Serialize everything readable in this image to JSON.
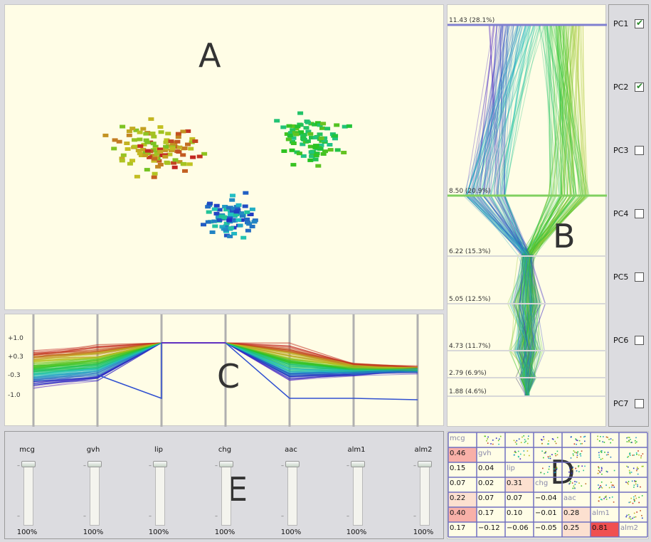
{
  "panel_labels": {
    "scatter": "A",
    "pca": "B",
    "pcp": "C",
    "matrix": "D",
    "sliders": "E"
  },
  "pca_axes": [
    {
      "label": "11.43 (28.1%)",
      "value": 11.43,
      "highlight": true
    },
    {
      "label": "8.50 (20.9%)",
      "value": 8.5,
      "highlight": true
    },
    {
      "label": "6.22 (15.3%)",
      "value": 6.22,
      "highlight": false
    },
    {
      "label": "5.05 (12.5%)",
      "value": 5.05,
      "highlight": false
    },
    {
      "label": "4.73 (11.7%)",
      "value": 4.73,
      "highlight": false
    },
    {
      "label": "2.79 (6.9%)",
      "value": 2.79,
      "highlight": false
    },
    {
      "label": "1.88 (4.6%)",
      "value": 1.88,
      "highlight": false
    }
  ],
  "components": [
    {
      "label": "PC1",
      "checked": true
    },
    {
      "label": "PC2",
      "checked": true
    },
    {
      "label": "PC3",
      "checked": false
    },
    {
      "label": "PC4",
      "checked": false
    },
    {
      "label": "PC5",
      "checked": false
    },
    {
      "label": "PC6",
      "checked": false
    },
    {
      "label": "PC7",
      "checked": false
    }
  ],
  "pcp_ticks": [
    "+1.0",
    "+0.3",
    "-0.3",
    "-1.0"
  ],
  "variables": [
    {
      "name": "mcg",
      "weight": "100%"
    },
    {
      "name": "gvh",
      "weight": "100%"
    },
    {
      "name": "lip",
      "weight": "100%"
    },
    {
      "name": "chg",
      "weight": "100%"
    },
    {
      "name": "aac",
      "weight": "100%"
    },
    {
      "name": "alm1",
      "weight": "100%"
    },
    {
      "name": "alm2",
      "weight": "100%"
    }
  ],
  "slider_min_tick": "–",
  "correlation_matrix": {
    "labels": [
      "mcg",
      "gvh",
      "lip",
      "chg",
      "aac",
      "alm1",
      "alm2"
    ],
    "rows": [
      [
        "",
        "",
        "",
        "",
        "",
        "",
        ""
      ],
      [
        "0.46",
        "",
        "",
        "",
        "",
        "",
        ""
      ],
      [
        "0.15",
        "0.04",
        "",
        "",
        "",
        "",
        ""
      ],
      [
        "0.07",
        "0.02",
        "0.31",
        "",
        "",
        "",
        ""
      ],
      [
        "0.22",
        "0.07",
        "0.07",
        "−0.04",
        "",
        "",
        ""
      ],
      [
        "0.40",
        "0.17",
        "0.10",
        "−0.01",
        "0.28",
        "",
        ""
      ],
      [
        "0.17",
        "−0.12",
        "−0.06",
        "−0.05",
        "0.25",
        "0.81",
        ""
      ]
    ],
    "values": [
      [
        null,
        null,
        null,
        null,
        null,
        null,
        null
      ],
      [
        0.46,
        null,
        null,
        null,
        null,
        null,
        null
      ],
      [
        0.15,
        0.04,
        null,
        null,
        null,
        null,
        null
      ],
      [
        0.07,
        0.02,
        0.31,
        null,
        null,
        null,
        null
      ],
      [
        0.22,
        0.07,
        0.07,
        -0.04,
        null,
        null,
        null
      ],
      [
        0.4,
        0.17,
        0.1,
        -0.01,
        0.28,
        null,
        null
      ],
      [
        0.17,
        -0.12,
        -0.06,
        -0.05,
        0.25,
        0.81,
        null
      ]
    ]
  },
  "colors": {
    "panel_bg": "#fffde6",
    "highlight_axis_1": "#8080d0",
    "highlight_axis_2": "#80d060",
    "corr_strong": "#f05050",
    "corr_mid": "#f8b0a8",
    "corr_weak": "#fce0d0"
  }
}
